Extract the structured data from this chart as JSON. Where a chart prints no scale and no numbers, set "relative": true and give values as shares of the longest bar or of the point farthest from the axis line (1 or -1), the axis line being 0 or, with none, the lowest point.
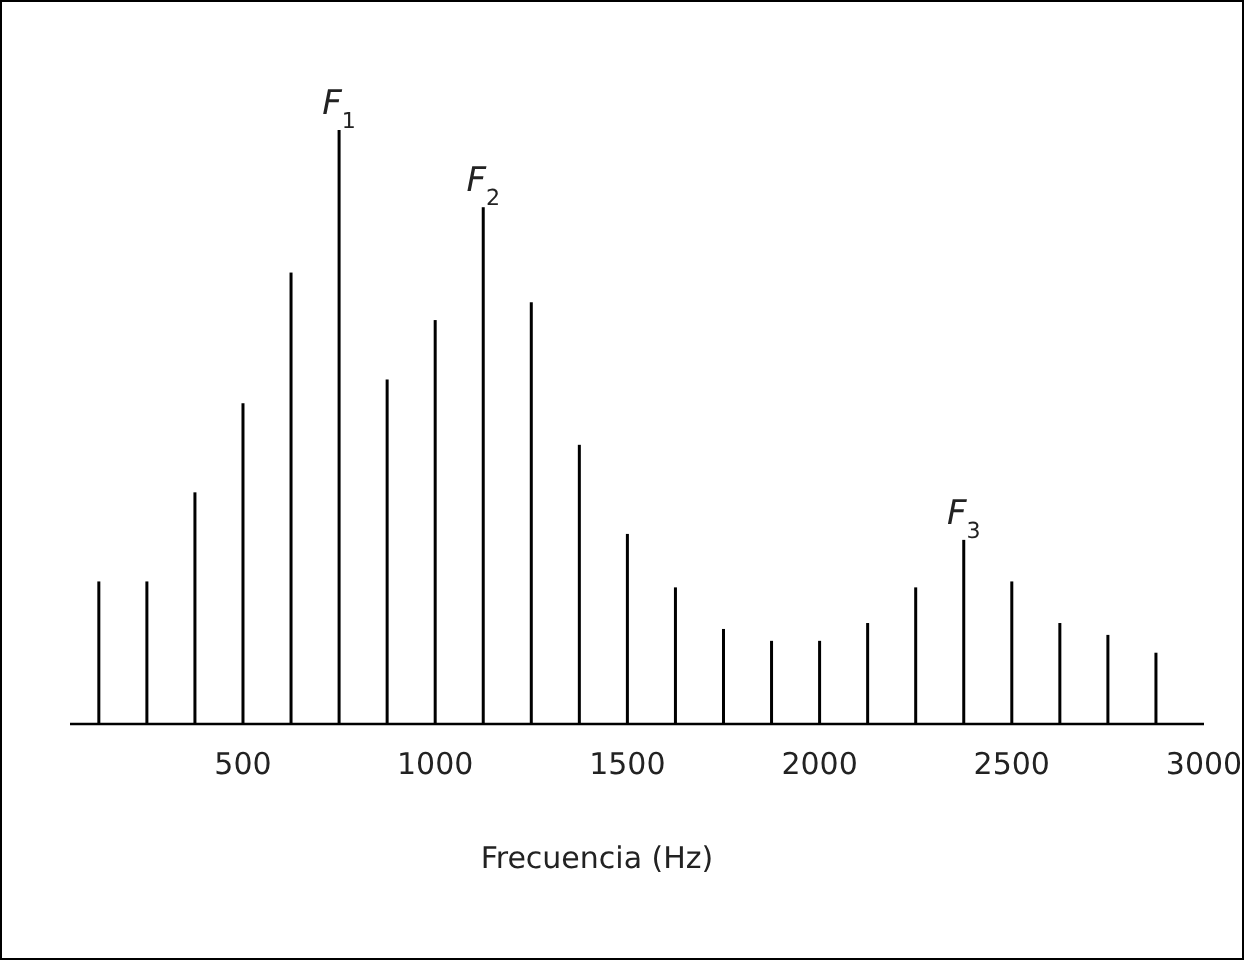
{
  "chart_data": {
    "type": "bar",
    "relative": true,
    "xlabel": "Frecuencia (Hz)",
    "x": [
      125,
      250,
      375,
      500,
      625,
      750,
      875,
      1000,
      1125,
      1250,
      1375,
      1500,
      1625,
      1750,
      1875,
      2000,
      2125,
      2250,
      2375,
      2500,
      2625,
      2750,
      2875
    ],
    "values": [
      0.24,
      0.24,
      0.39,
      0.54,
      0.76,
      1,
      0.58,
      0.68,
      0.87,
      0.71,
      0.47,
      0.32,
      0.23,
      0.16,
      0.14,
      0.14,
      0.17,
      0.23,
      0.31,
      0.24,
      0.17,
      0.15,
      0.12
    ],
    "color": "#000000",
    "xlim": [
      50,
      3000
    ],
    "xticks": [
      500,
      1000,
      1500,
      2000,
      2500,
      3000
    ],
    "grid": false,
    "annotations": [
      {
        "text": "F$_{1}$",
        "x": 750,
        "y": 1
      },
      {
        "text": "F$_{2}$",
        "x": 1125,
        "y": 0.87
      },
      {
        "text": "F$_{3}$",
        "x": 2375,
        "y": 0.31
      }
    ]
  }
}
